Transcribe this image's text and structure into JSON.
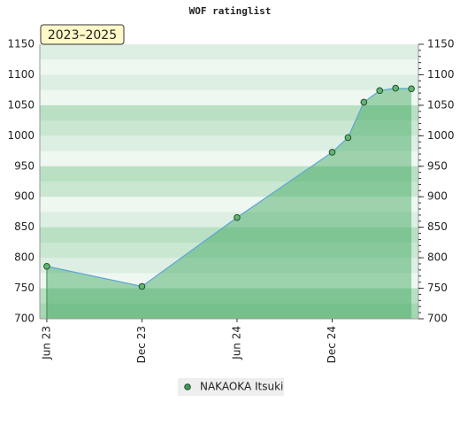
{
  "chart_data": {
    "type": "line",
    "title": "WOF ratinglist",
    "badge": "2023–2025",
    "x": [
      "2023-06",
      "2023-12",
      "2024-06",
      "2024-12",
      "2025-01",
      "2025-02",
      "2025-03",
      "2025-04",
      "2025-05"
    ],
    "series": [
      {
        "name": "NAKAOKA Itsuki",
        "color": "#3a9a5a",
        "values": [
          786,
          753,
          866,
          973,
          997,
          1055,
          1074,
          1078,
          1077
        ]
      }
    ],
    "xlim": [
      "2023-05",
      "2025-06"
    ],
    "xticks": [
      {
        "value": "2023-06",
        "label": "Jun 23"
      },
      {
        "value": "2023-12",
        "label": "Dec 23"
      },
      {
        "value": "2024-06",
        "label": "Jun 24"
      },
      {
        "value": "2024-12",
        "label": "Dec 24"
      }
    ],
    "ylim": [
      700,
      1150
    ],
    "yticks": [
      700,
      750,
      800,
      850,
      900,
      950,
      1000,
      1050,
      1100,
      1150
    ]
  }
}
